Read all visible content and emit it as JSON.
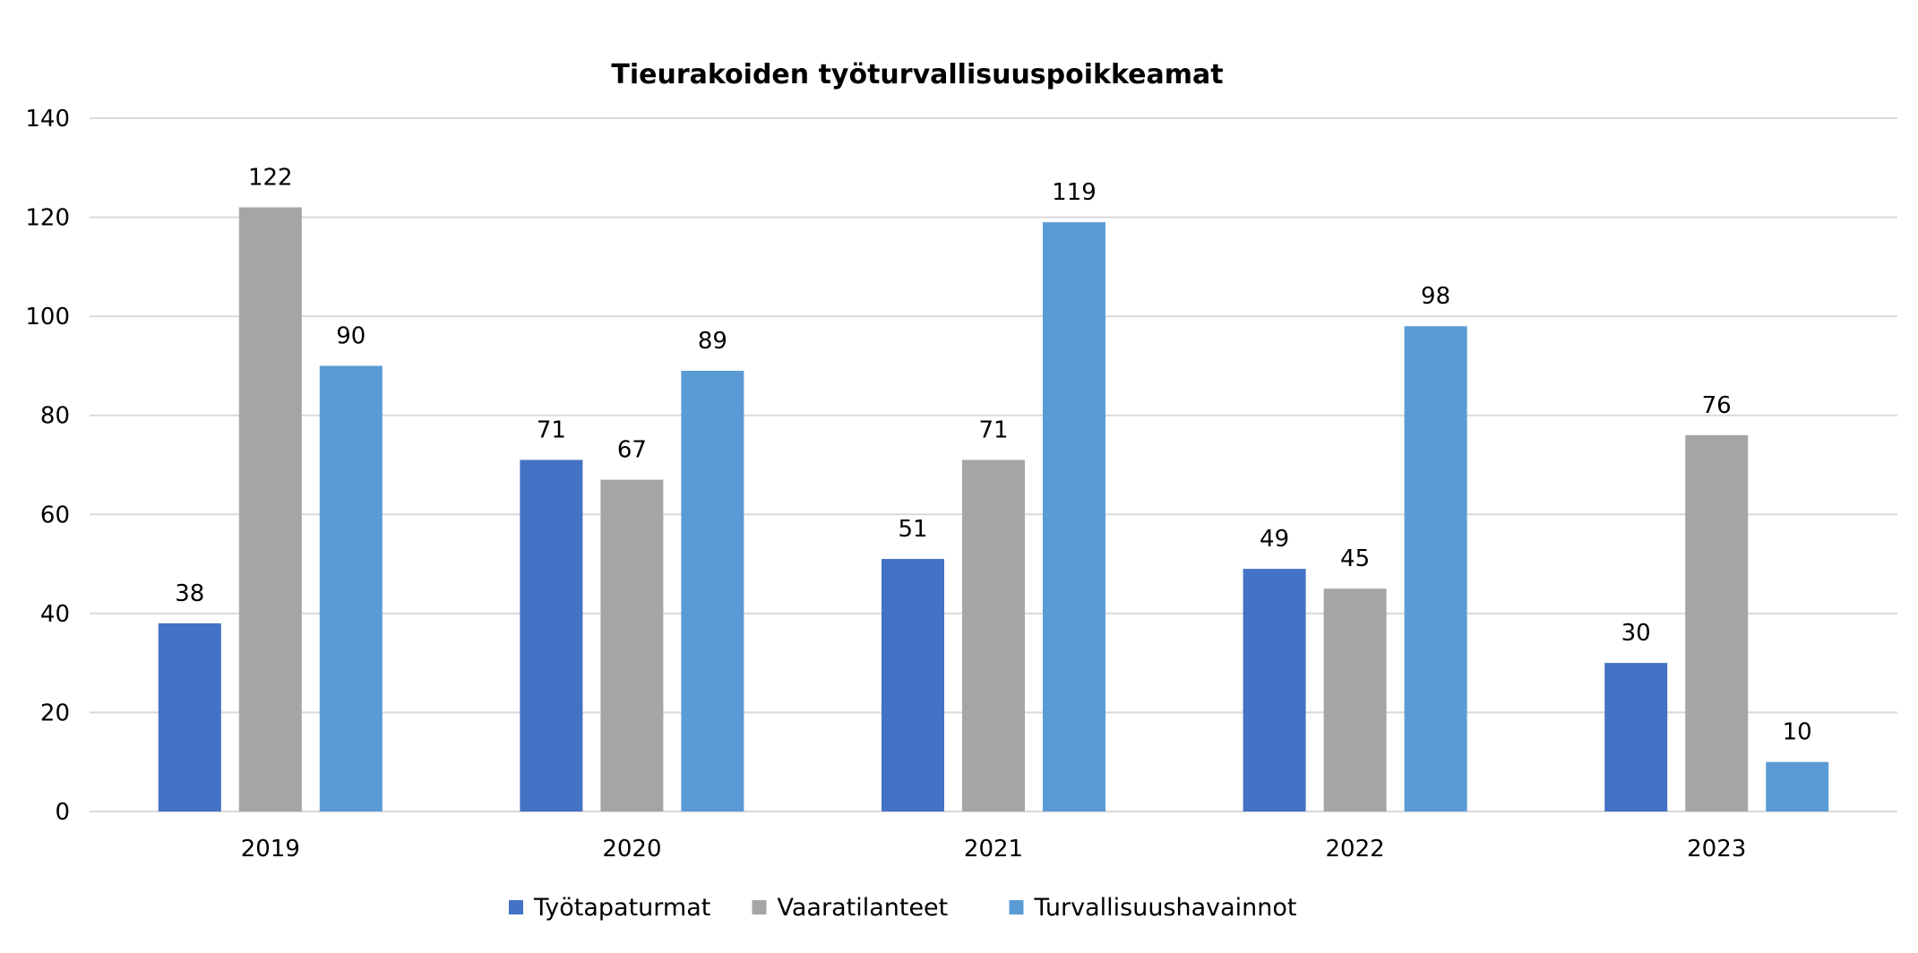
{
  "chart_data": {
    "type": "bar",
    "title": "Tieurakoiden työturvallisuuspoikkeamat",
    "xlabel": "",
    "ylabel": "",
    "categories": [
      "2019",
      "2020",
      "2021",
      "2022",
      "2023"
    ],
    "series": [
      {
        "name": "Työtapaturmat",
        "color": "#4472c4",
        "values": [
          38,
          71,
          51,
          49,
          30
        ]
      },
      {
        "name": "Vaaratilanteet",
        "color": "#a5a5a5",
        "values": [
          122,
          67,
          71,
          45,
          76
        ]
      },
      {
        "name": "Turvallisuushavainnot",
        "color": "#5b9bd5",
        "values": [
          90,
          89,
          119,
          98,
          10
        ]
      }
    ],
    "ylim": [
      0,
      140
    ],
    "yticks": [
      0,
      20,
      40,
      60,
      80,
      100,
      120,
      140
    ],
    "grid": true,
    "legend": "bottom-center",
    "data_labels": true
  }
}
